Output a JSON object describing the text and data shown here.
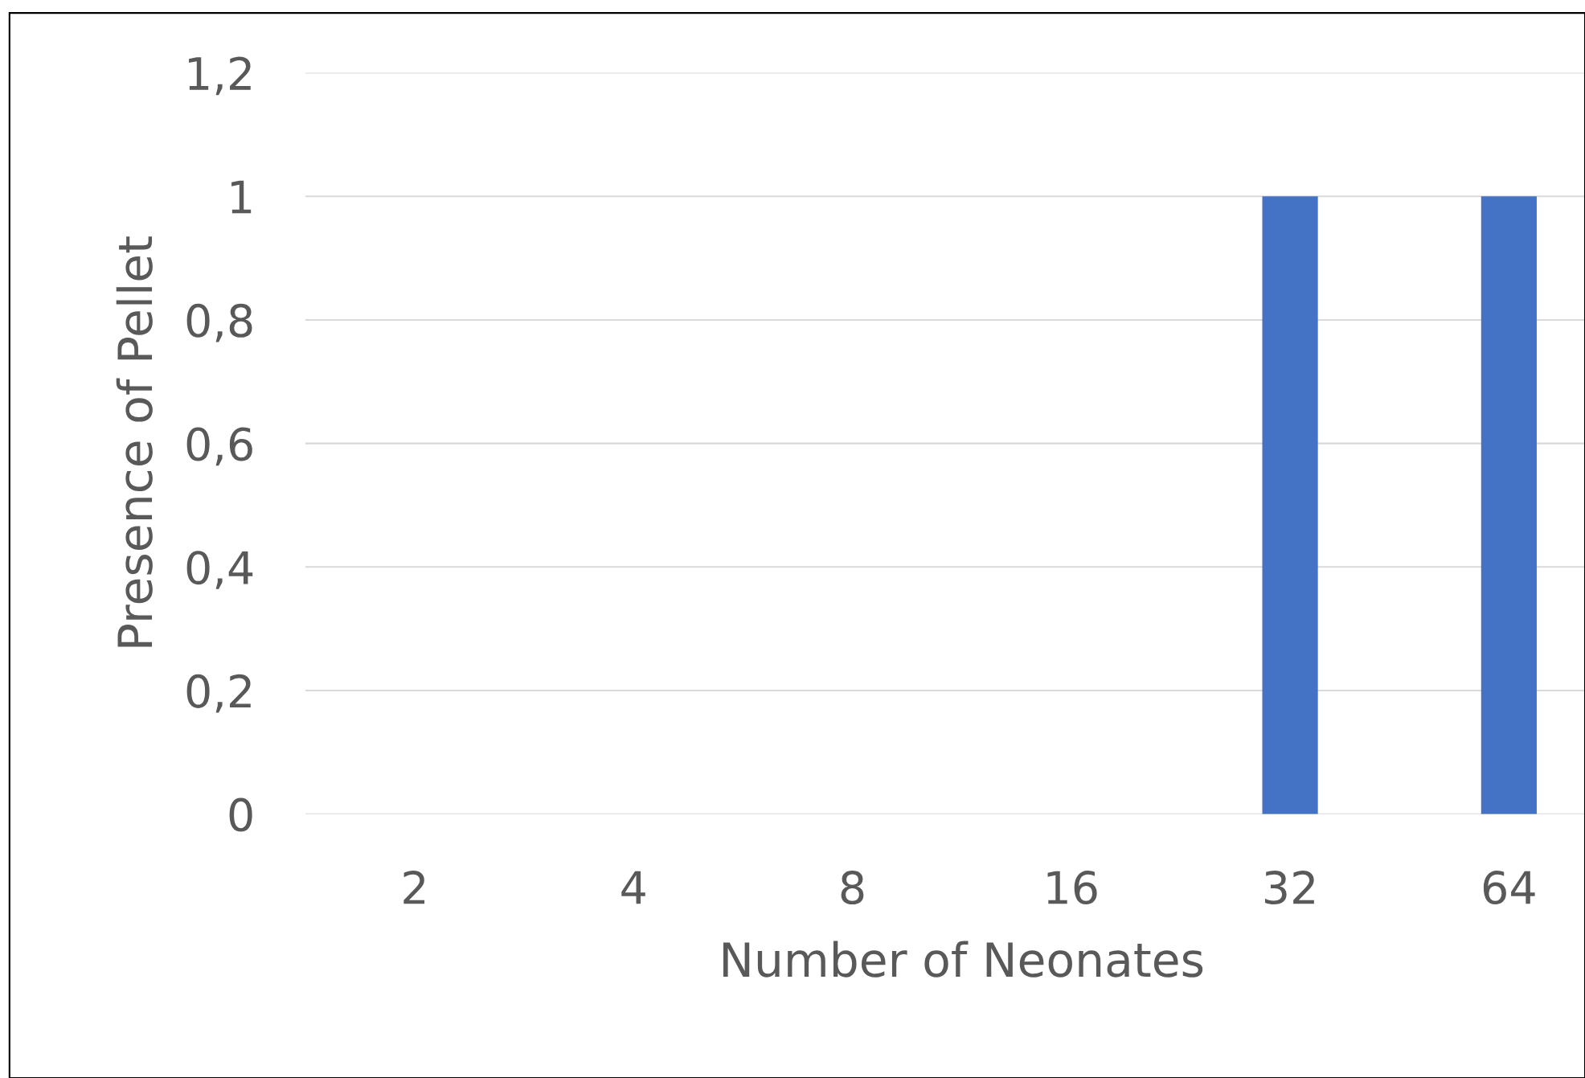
{
  "chart_data": {
    "type": "bar",
    "xlabel": "Number of Neonates",
    "ylabel": "Presence of Pellet",
    "categories": [
      "2",
      "4",
      "8",
      "16",
      "32",
      "64"
    ],
    "values": [
      0,
      0,
      0,
      0,
      1,
      1
    ],
    "color": "#4472c4",
    "ylim": [
      0,
      1.2
    ],
    "yticks": [
      0,
      {
        "value": 0.2,
        "label": "0,2"
      },
      {
        "value": 0.4,
        "label": "0,4"
      },
      {
        "value": 0.6,
        "label": "0,6"
      },
      {
        "value": 0.8,
        "label": "0,8"
      },
      1,
      {
        "value": 1.2,
        "label": "1,2"
      }
    ],
    "grid": "y",
    "legend": false
  }
}
